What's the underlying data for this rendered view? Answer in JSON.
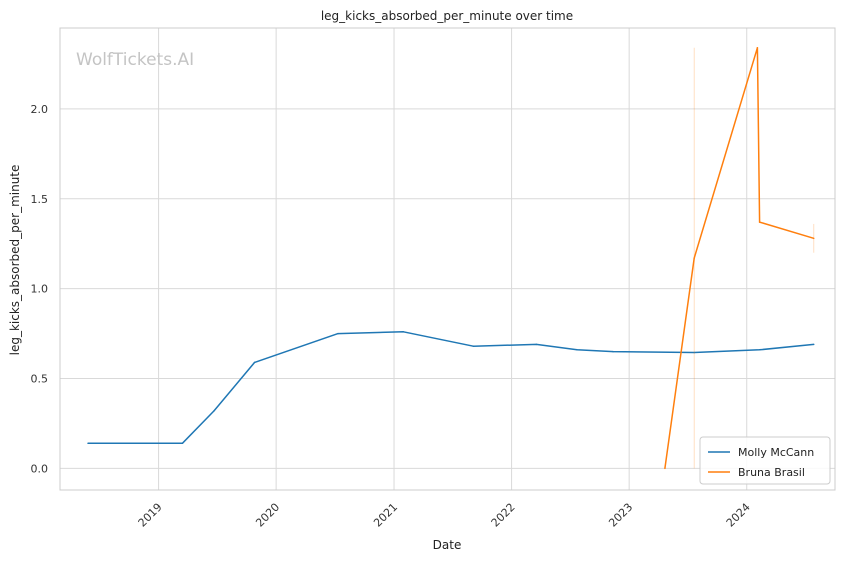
{
  "chart_data": {
    "type": "line",
    "title": "leg_kicks_absorbed_per_minute over time",
    "xlabel": "Date",
    "ylabel": "leg_kicks_absorbed_per_minute",
    "watermark": "WolfTickets.AI",
    "xlim": [
      "2018-03-01",
      "2024-10-01"
    ],
    "ylim": [
      -0.12,
      2.45
    ],
    "x_ticks": [
      "2019",
      "2020",
      "2021",
      "2022",
      "2023",
      "2024"
    ],
    "y_ticks": [
      "0.0",
      "0.5",
      "1.0",
      "1.5",
      "2.0"
    ],
    "grid": true,
    "legend_position": "bottom-right",
    "series": [
      {
        "name": "Molly McCann",
        "color": "#1f77b4",
        "points": [
          {
            "x": "2018-05-27",
            "y": 0.14
          },
          {
            "x": "2019-03-16",
            "y": 0.14
          },
          {
            "x": "2019-06-22",
            "y": 0.32
          },
          {
            "x": "2019-10-26",
            "y": 0.59
          },
          {
            "x": "2020-07-11",
            "y": 0.75
          },
          {
            "x": "2021-01-30",
            "y": 0.76
          },
          {
            "x": "2021-09-04",
            "y": 0.68
          },
          {
            "x": "2022-03-19",
            "y": 0.69
          },
          {
            "x": "2022-07-23",
            "y": 0.66
          },
          {
            "x": "2022-11-12",
            "y": 0.65
          },
          {
            "x": "2023-07-22",
            "y": 0.645
          },
          {
            "x": "2024-02-10",
            "y": 0.66
          },
          {
            "x": "2024-07-27",
            "y": 0.69
          }
        ]
      },
      {
        "name": "Bruna Brasil",
        "color": "#ff7f0e",
        "points": [
          {
            "x": "2023-04-22",
            "y": 0.0
          },
          {
            "x": "2023-07-22",
            "y": 1.17
          },
          {
            "x": "2024-02-03",
            "y": 2.34
          },
          {
            "x": "2024-02-10",
            "y": 1.37
          },
          {
            "x": "2024-07-27",
            "y": 1.28
          }
        ],
        "bands": [
          {
            "x": "2023-07-22",
            "low": 0.0,
            "high": 2.34
          },
          {
            "x": "2024-07-27",
            "low": 1.2,
            "high": 1.36
          }
        ]
      }
    ]
  }
}
